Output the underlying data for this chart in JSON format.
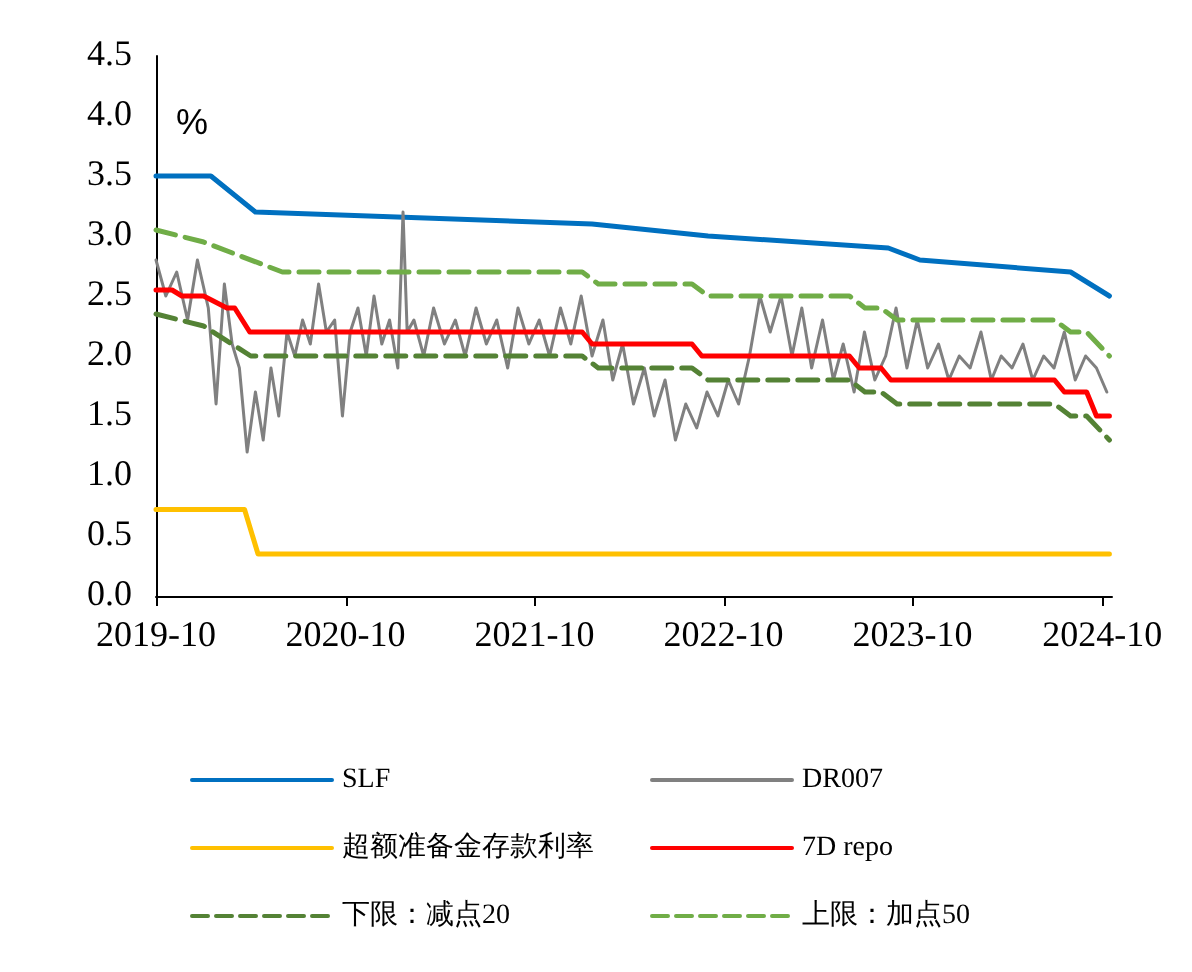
{
  "chart_data": {
    "type": "line",
    "ylabel": "%",
    "legend": "bottom",
    "marker": "none",
    "grid": false,
    "xlim": [
      "2019-10-01",
      "2024-10-20"
    ],
    "ylim": [
      0,
      4.5
    ],
    "xticks": [
      {
        "value": "2019-10-01",
        "label": "2019-10"
      },
      {
        "value": "2020-10-01",
        "label": "2020-10"
      },
      {
        "value": "2021-10-01",
        "label": "2021-10"
      },
      {
        "value": "2022-10-01",
        "label": "2022-10"
      },
      {
        "value": "2023-10-01",
        "label": "2023-10"
      },
      {
        "value": "2024-10-01",
        "label": "2024-10"
      }
    ],
    "yticks": [
      {
        "value": 0,
        "label": "0.0"
      },
      {
        "value": 0.5,
        "label": "0.5"
      },
      {
        "value": 1,
        "label": "1.0"
      },
      {
        "value": 1.5,
        "label": "1.5"
      },
      {
        "value": 2,
        "label": "2.0"
      },
      {
        "value": 2.5,
        "label": "2.5"
      },
      {
        "value": 3,
        "label": "3.0"
      },
      {
        "value": 3.5,
        "label": "3.5"
      },
      {
        "value": 4,
        "label": "4.0"
      },
      {
        "value": 4.5,
        "label": "4.5"
      }
    ],
    "series": [
      {
        "name": "SLF",
        "color": "#0070c0",
        "line_style": "solid",
        "x": [
          "2019-10-01",
          "2020-01-15",
          "2020-04-10",
          "2022-01-20",
          "2022-09-01",
          "2023-08-15",
          "2023-10-15",
          "2024-08-01",
          "2024-10-15"
        ],
        "values": [
          3.5,
          3.5,
          3.2,
          3.1,
          3.0,
          2.9,
          2.8,
          2.7,
          2.5
        ]
      },
      {
        "name": "DR007",
        "color": "#808080",
        "line_style": "solid",
        "x": [
          "2019-10-01",
          "2019-10-20",
          "2019-11-10",
          "2019-12-01",
          "2019-12-20",
          "2020-01-10",
          "2020-01-25",
          "2020-02-10",
          "2020-02-25",
          "2020-03-10",
          "2020-03-25",
          "2020-04-10",
          "2020-04-25",
          "2020-05-10",
          "2020-05-25",
          "2020-06-10",
          "2020-06-25",
          "2020-07-10",
          "2020-07-25",
          "2020-08-10",
          "2020-08-25",
          "2020-09-10",
          "2020-09-25",
          "2020-10-10",
          "2020-10-25",
          "2020-11-10",
          "2020-11-25",
          "2020-12-10",
          "2020-12-25",
          "2021-01-10",
          "2021-01-20",
          "2021-01-28",
          "2021-02-10",
          "2021-03-01",
          "2021-03-20",
          "2021-04-10",
          "2021-05-01",
          "2021-05-20",
          "2021-06-10",
          "2021-06-30",
          "2021-07-20",
          "2021-08-10",
          "2021-08-30",
          "2021-09-20",
          "2021-10-10",
          "2021-10-30",
          "2021-11-20",
          "2021-12-10",
          "2021-12-30",
          "2022-01-20",
          "2022-02-10",
          "2022-03-01",
          "2022-03-20",
          "2022-04-10",
          "2022-05-01",
          "2022-05-20",
          "2022-06-10",
          "2022-06-30",
          "2022-07-20",
          "2022-08-10",
          "2022-08-30",
          "2022-09-20",
          "2022-10-10",
          "2022-10-30",
          "2022-11-20",
          "2022-12-10",
          "2022-12-30",
          "2023-01-20",
          "2023-02-10",
          "2023-03-01",
          "2023-03-20",
          "2023-04-10",
          "2023-05-01",
          "2023-05-20",
          "2023-06-10",
          "2023-06-30",
          "2023-07-20",
          "2023-08-10",
          "2023-08-30",
          "2023-09-20",
          "2023-10-10",
          "2023-10-30",
          "2023-11-20",
          "2023-12-10",
          "2023-12-30",
          "2024-01-20",
          "2024-02-10",
          "2024-03-01",
          "2024-03-20",
          "2024-04-10",
          "2024-05-01",
          "2024-05-20",
          "2024-06-10",
          "2024-06-30",
          "2024-07-20",
          "2024-08-10",
          "2024-08-30",
          "2024-09-20",
          "2024-10-10"
        ],
        "values": [
          2.8,
          2.5,
          2.7,
          2.3,
          2.8,
          2.4,
          1.6,
          2.6,
          2.1,
          1.9,
          1.2,
          1.7,
          1.3,
          1.9,
          1.5,
          2.2,
          2.0,
          2.3,
          2.1,
          2.6,
          2.2,
          2.3,
          1.5,
          2.2,
          2.4,
          2.0,
          2.5,
          2.1,
          2.3,
          1.9,
          3.2,
          2.2,
          2.3,
          2.0,
          2.4,
          2.1,
          2.3,
          2.0,
          2.4,
          2.1,
          2.3,
          1.9,
          2.4,
          2.1,
          2.3,
          2.0,
          2.4,
          2.1,
          2.5,
          2.0,
          2.3,
          1.8,
          2.1,
          1.6,
          1.9,
          1.5,
          1.8,
          1.3,
          1.6,
          1.4,
          1.7,
          1.5,
          1.8,
          1.6,
          2.0,
          2.5,
          2.2,
          2.5,
          2.0,
          2.4,
          1.9,
          2.3,
          1.8,
          2.1,
          1.7,
          2.2,
          1.8,
          2.0,
          2.4,
          1.9,
          2.3,
          1.9,
          2.1,
          1.8,
          2.0,
          1.9,
          2.2,
          1.8,
          2.0,
          1.9,
          2.1,
          1.8,
          2.0,
          1.9,
          2.2,
          1.8,
          2.0,
          1.9,
          1.7
        ]
      },
      {
        "name": "超额准备金存款利率",
        "color": "#ffc000",
        "line_style": "solid",
        "x": [
          "2019-10-01",
          "2020-03-20",
          "2020-04-15",
          "2024-10-15"
        ],
        "values": [
          0.72,
          0.72,
          0.35,
          0.35
        ]
      },
      {
        "name": "7D repo",
        "color": "#ff0000",
        "line_style": "solid",
        "x": [
          "2019-10-01",
          "2019-11-01",
          "2019-11-20",
          "2020-01-01",
          "2020-02-15",
          "2020-03-01",
          "2020-03-30",
          "2022-01-01",
          "2022-01-20",
          "2022-08-01",
          "2022-08-20",
          "2023-06-01",
          "2023-06-20",
          "2023-08-01",
          "2023-08-20",
          "2024-07-01",
          "2024-07-20",
          "2024-09-01",
          "2024-09-20",
          "2024-10-15"
        ],
        "values": [
          2.55,
          2.55,
          2.5,
          2.5,
          2.4,
          2.4,
          2.2,
          2.2,
          2.1,
          2.1,
          2.0,
          2.0,
          1.9,
          1.9,
          1.8,
          1.8,
          1.7,
          1.7,
          1.5,
          1.5
        ]
      },
      {
        "name": "下限：减点20",
        "color": "#548235",
        "line_style": "dashed",
        "x": [
          "2019-10-01",
          "2020-01-01",
          "2020-04-01",
          "2022-01-01",
          "2022-02-01",
          "2022-08-01",
          "2022-09-01",
          "2023-06-01",
          "2023-07-01",
          "2023-08-01",
          "2023-09-01",
          "2024-07-01",
          "2024-08-01",
          "2024-09-01",
          "2024-10-15"
        ],
        "values": [
          2.35,
          2.25,
          2.0,
          2.0,
          1.9,
          1.9,
          1.8,
          1.8,
          1.7,
          1.7,
          1.6,
          1.6,
          1.5,
          1.5,
          1.3
        ]
      },
      {
        "name": "上限：加点50",
        "color": "#70ad47",
        "line_style": "dashed",
        "x": [
          "2019-10-01",
          "2020-01-01",
          "2020-06-01",
          "2022-01-01",
          "2022-02-01",
          "2022-08-01",
          "2022-09-01",
          "2023-06-01",
          "2023-07-01",
          "2023-08-01",
          "2023-09-01",
          "2024-07-01",
          "2024-08-01",
          "2024-09-01",
          "2024-10-15"
        ],
        "values": [
          3.05,
          2.95,
          2.7,
          2.7,
          2.6,
          2.6,
          2.5,
          2.5,
          2.4,
          2.4,
          2.3,
          2.3,
          2.2,
          2.2,
          2.0
        ]
      }
    ]
  }
}
